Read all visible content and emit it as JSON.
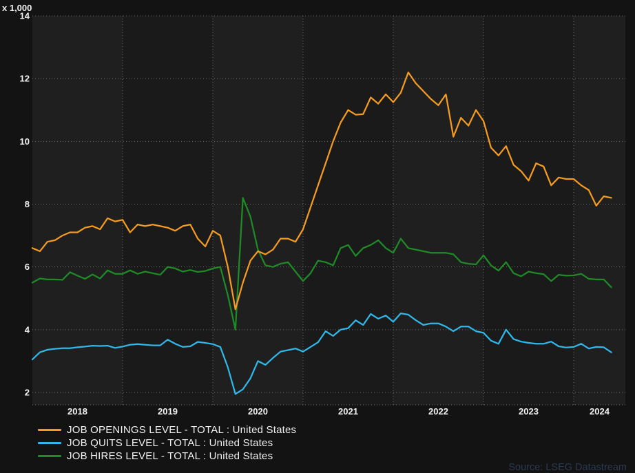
{
  "chart_data": {
    "type": "line",
    "unit_label": "x 1,000",
    "frequency": "monthly",
    "x_start": "2018-01",
    "x_end": "2024-06",
    "x_tick_labels": [
      "2018",
      "2019",
      "2020",
      "2021",
      "2022",
      "2023",
      "2024"
    ],
    "y_ticks": [
      2,
      4,
      6,
      8,
      10,
      12,
      14
    ],
    "ylim": [
      1.6,
      14
    ],
    "grid": "dotted",
    "legend_position": "bottom-left",
    "source_note": "Source: LSEG Datastream",
    "series": [
      {
        "name": "JOB OPENINGS LEVEL - TOTAL : United States",
        "color": "#f59b20",
        "values": [
          6.6,
          6.5,
          6.8,
          6.85,
          7.0,
          7.1,
          7.1,
          7.25,
          7.3,
          7.2,
          7.55,
          7.45,
          7.5,
          7.1,
          7.35,
          7.3,
          7.35,
          7.3,
          7.25,
          7.15,
          7.3,
          7.35,
          6.9,
          6.65,
          7.15,
          7.0,
          6.0,
          4.65,
          5.5,
          6.2,
          6.5,
          6.4,
          6.55,
          6.9,
          6.9,
          6.8,
          7.2,
          7.9,
          8.6,
          9.3,
          10.0,
          10.6,
          11.0,
          10.85,
          10.87,
          11.4,
          11.2,
          11.5,
          11.25,
          11.55,
          12.2,
          11.85,
          11.6,
          11.35,
          11.15,
          11.5,
          10.15,
          10.75,
          10.5,
          11.0,
          10.65,
          9.8,
          9.55,
          9.85,
          9.25,
          9.05,
          8.75,
          9.3,
          9.2,
          8.6,
          8.85,
          8.8,
          8.8,
          8.6,
          8.45,
          7.95,
          8.25,
          8.2
        ]
      },
      {
        "name": "JOB QUITS LEVEL - TOTAL : United States",
        "color": "#2fb9ea",
        "values": [
          3.05,
          3.28,
          3.36,
          3.39,
          3.41,
          3.41,
          3.44,
          3.46,
          3.49,
          3.48,
          3.49,
          3.42,
          3.46,
          3.52,
          3.54,
          3.52,
          3.5,
          3.5,
          3.68,
          3.55,
          3.45,
          3.47,
          3.61,
          3.58,
          3.54,
          3.45,
          2.8,
          1.95,
          2.1,
          2.45,
          3.0,
          2.88,
          3.1,
          3.3,
          3.35,
          3.4,
          3.3,
          3.45,
          3.6,
          3.95,
          3.8,
          4.0,
          4.05,
          4.3,
          4.15,
          4.5,
          4.35,
          4.45,
          4.25,
          4.52,
          4.48,
          4.3,
          4.15,
          4.2,
          4.2,
          4.1,
          3.95,
          4.1,
          4.1,
          3.95,
          3.9,
          3.65,
          3.55,
          4.0,
          3.7,
          3.62,
          3.58,
          3.55,
          3.55,
          3.62,
          3.47,
          3.43,
          3.45,
          3.55,
          3.4,
          3.45,
          3.44,
          3.28
        ]
      },
      {
        "name": "JOB HIRES LEVEL - TOTAL : United States",
        "color": "#1f8b27",
        "values": [
          5.5,
          5.63,
          5.6,
          5.6,
          5.59,
          5.83,
          5.72,
          5.62,
          5.76,
          5.63,
          5.89,
          5.78,
          5.78,
          5.89,
          5.78,
          5.85,
          5.8,
          5.75,
          6.0,
          5.95,
          5.85,
          5.9,
          5.84,
          5.87,
          5.95,
          6.0,
          5.1,
          4.0,
          8.2,
          7.6,
          6.55,
          6.05,
          6.0,
          6.1,
          6.15,
          5.85,
          5.55,
          5.8,
          6.2,
          6.15,
          6.05,
          6.6,
          6.7,
          6.35,
          6.6,
          6.7,
          6.85,
          6.6,
          6.45,
          6.9,
          6.6,
          6.55,
          6.5,
          6.45,
          6.45,
          6.45,
          6.4,
          6.15,
          6.1,
          6.08,
          6.37,
          6.05,
          5.88,
          6.15,
          5.8,
          5.7,
          5.85,
          5.8,
          5.77,
          5.55,
          5.75,
          5.72,
          5.73,
          5.78,
          5.62,
          5.6,
          5.6,
          5.35
        ]
      }
    ]
  },
  "colors": {
    "page_background": "#131313",
    "band_even_year": "#1f1f1f",
    "band_odd_year": "#1a1a1a",
    "gridline": "#6e6e6e",
    "axis_text": "#f2f2f2",
    "source_text": "#2b3950"
  }
}
